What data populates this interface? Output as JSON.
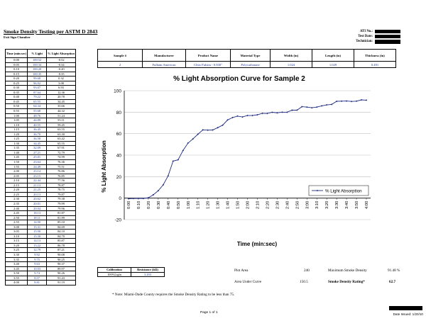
{
  "report": {
    "title": "Smoke Density Testing per ASTM D 2843",
    "subtitle": "Exit Sign Chamber",
    "meta_labels": [
      "ATI No.:",
      "Test Date:",
      "Technician:"
    ]
  },
  "readings_table": {
    "headers": [
      "Time (min:sec)",
      "% Light",
      "% Light Absorption"
    ],
    "rows": [
      [
        "0:00",
        "100.52",
        "-0.52"
      ],
      [
        "0:05",
        "100.34",
        "-0.34"
      ],
      [
        "0:10",
        "100.20",
        "-0.20"
      ],
      [
        "0:15",
        "100.35",
        "-0.35"
      ],
      [
        "0:20",
        "99.68",
        "0.32"
      ],
      [
        "0:25",
        "96.92",
        "3.08"
      ],
      [
        "0:30",
        "93.07",
        "6.93"
      ],
      [
        "0:35",
        "87.64",
        "12.36"
      ],
      [
        "0:40",
        "79.22",
        "20.78"
      ],
      [
        "0:45",
        "65.55",
        "34.45"
      ],
      [
        "0:50",
        "64.34",
        "35.66"
      ],
      [
        "0:55",
        "55.68",
        "44.32"
      ],
      [
        "1:00",
        "48.76",
        "51.24"
      ],
      [
        "1:05",
        "44.89",
        "55.11"
      ],
      [
        "1:10",
        "40.55",
        "59.45"
      ],
      [
        "1:15",
        "36.45",
        "63.55"
      ],
      [
        "1:20",
        "36.70",
        "63.30"
      ],
      [
        "1:25",
        "36.58",
        "63.42"
      ],
      [
        "1:30",
        "34.45",
        "65.55"
      ],
      [
        "1:35",
        "32.09",
        "67.91"
      ],
      [
        "1:40",
        "27.21",
        "72.79"
      ],
      [
        "1:45",
        "25.01",
        "74.99"
      ],
      [
        "1:50",
        "23.64",
        "76.36"
      ],
      [
        "1:55",
        "24.49",
        "75.51"
      ],
      [
        "2:00",
        "23.14",
        "76.86"
      ],
      [
        "2:05",
        "23.15",
        "76.85"
      ],
      [
        "2:10",
        "22.44",
        "77.56"
      ],
      [
        "2:15",
        "21.13",
        "78.87"
      ],
      [
        "2:20",
        "21.25",
        "78.75"
      ],
      [
        "2:25",
        "20.13",
        "79.87"
      ],
      [
        "2:30",
        "20.62",
        "79.38"
      ],
      [
        "2:35",
        "20.01",
        "79.99"
      ],
      [
        "2:40",
        "20.04",
        "79.96"
      ],
      [
        "2:45",
        "18.13",
        "81.87"
      ],
      [
        "2:50",
        "18.11",
        "81.89"
      ],
      [
        "2:55",
        "14.90",
        "85.10"
      ],
      [
        "3:00",
        "15.31",
        "84.69"
      ],
      [
        "3:05",
        "15.90",
        "84.10"
      ],
      [
        "3:10",
        "15.30",
        "84.70"
      ],
      [
        "3:15",
        "14.13",
        "85.87"
      ],
      [
        "3:20",
        "13.22",
        "86.78"
      ],
      [
        "3:25",
        "12.79",
        "87.21"
      ],
      [
        "3:30",
        "9.92",
        "90.08"
      ],
      [
        "3:35",
        "9.75",
        "90.25"
      ],
      [
        "3:40",
        "9.63",
        "90.37"
      ],
      [
        "3:45",
        "10.03",
        "89.97"
      ],
      [
        "3:50",
        "9.74",
        "90.26"
      ],
      [
        "3:55",
        "8.57",
        "91.43"
      ],
      [
        "4:00",
        "8.81",
        "91.19"
      ]
    ]
  },
  "sample_table": {
    "headers": [
      "Sample #",
      "Manufacturer",
      "Product Name",
      "Material Type",
      "Width (in)",
      "Length (in)",
      "Thickness (in)"
    ],
    "row": [
      "2",
      "Fulham American",
      "Clear Fulsim - 0.500\"",
      "Polycarbonate",
      "1.024",
      "1.029",
      "0.491"
    ]
  },
  "chart_data": {
    "type": "line",
    "title": "% Light Absorption Curve for Sample 2",
    "xlabel": "Time (min:sec)",
    "ylabel": "% Light Absorption",
    "ylim": [
      -20,
      100
    ],
    "yticks": [
      -20,
      0,
      20,
      40,
      60,
      80,
      100
    ],
    "grid": "horizontal",
    "legend_position": "right",
    "series": [
      {
        "name": "% Light Absorption",
        "color": "#1f2d80",
        "x": [
          "0:00",
          "0:05",
          "0:10",
          "0:15",
          "0:20",
          "0:25",
          "0:30",
          "0:35",
          "0:40",
          "0:45",
          "0:50",
          "0:55",
          "1:00",
          "1:05",
          "1:10",
          "1:15",
          "1:20",
          "1:25",
          "1:30",
          "1:35",
          "1:40",
          "1:45",
          "1:50",
          "1:55",
          "2:00",
          "2:05",
          "2:10",
          "2:15",
          "2:20",
          "2:25",
          "2:30",
          "2:35",
          "2:40",
          "2:45",
          "2:50",
          "2:55",
          "3:00",
          "3:05",
          "3:10",
          "3:15",
          "3:20",
          "3:25",
          "3:30",
          "3:35",
          "3:40",
          "3:45",
          "3:50",
          "3:55",
          "4:00"
        ],
        "values": [
          -0.52,
          -0.34,
          -0.2,
          -0.35,
          0.32,
          3.08,
          6.93,
          12.36,
          20.78,
          34.45,
          35.66,
          44.32,
          51.24,
          55.11,
          59.45,
          63.55,
          63.3,
          63.42,
          65.55,
          67.91,
          72.79,
          74.99,
          76.36,
          75.51,
          76.86,
          76.85,
          77.56,
          78.87,
          78.75,
          79.87,
          79.38,
          79.99,
          79.96,
          81.87,
          81.89,
          85.1,
          84.69,
          84.1,
          84.7,
          85.87,
          86.78,
          87.21,
          90.08,
          90.25,
          90.37,
          89.97,
          90.26,
          91.43,
          91.19
        ]
      }
    ],
    "tick_labels_x": [
      "0:00",
      "0:10",
      "0:20",
      "0:30",
      "0:40",
      "0:50",
      "1:00",
      "1:10",
      "1:20",
      "1:30",
      "1:40",
      "1:50",
      "2:00",
      "2:10",
      "2:20",
      "2:30",
      "2:40",
      "2:50",
      "3:00",
      "3:10",
      "3:20",
      "3:30",
      "3:40",
      "3:50",
      "4:00"
    ]
  },
  "calibration": {
    "headers": [
      "Calibration",
      "Resistance (kΩ)"
    ],
    "row": [
      "100%Light",
      "3.203"
    ]
  },
  "summary": {
    "plot_area_label": "Plot Area",
    "plot_area_value": "240",
    "auc_label": "Area Under Curve",
    "auc_value": "150.5",
    "max_smoke_label": "Maximum Smoke Density",
    "max_smoke_value": "91.48 %",
    "rating_label": "Smoke Density Rating*",
    "rating_value": "62.7"
  },
  "note": "* Note:  Miami-Dade County requires the Smoke Density Rating to be less than 75.",
  "footer": {
    "page": "Page 1 of 1",
    "date": "Date Issued: 1/20/10"
  }
}
